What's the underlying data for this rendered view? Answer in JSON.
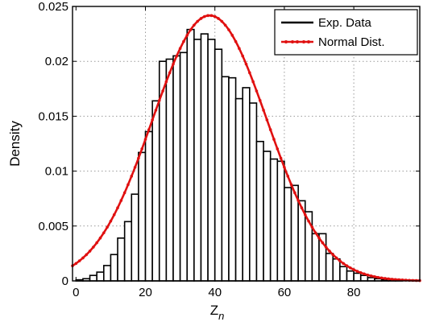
{
  "chart_data": {
    "type": "bar",
    "title": "",
    "xlabel": "Z",
    "xlabel_subscript": "n",
    "ylabel": "Density",
    "xlim": [
      -1,
      99
    ],
    "ylim": [
      0,
      0.025
    ],
    "grid": true,
    "legend_position": "top-right",
    "x_ticks": [
      0,
      20,
      40,
      60,
      80
    ],
    "x_tick_labels": [
      "0",
      "20",
      "40",
      "60",
      "80"
    ],
    "y_ticks": [
      0,
      0.005,
      0.01,
      0.015,
      0.02,
      0.025
    ],
    "y_tick_labels": [
      "0",
      "0.005",
      "0.01",
      "0.015",
      "0.02",
      "0.025"
    ],
    "bin_width": 2,
    "series": [
      {
        "name": "Exp. Data",
        "kind": "histogram",
        "color": "#000000",
        "bin_starts": [
          0,
          2,
          4,
          6,
          8,
          10,
          12,
          14,
          16,
          18,
          20,
          22,
          24,
          26,
          28,
          30,
          32,
          34,
          36,
          38,
          40,
          42,
          44,
          46,
          48,
          50,
          52,
          54,
          56,
          58,
          60,
          62,
          64,
          66,
          68,
          70,
          72,
          74,
          76,
          78,
          80,
          82,
          84,
          86,
          88,
          90,
          92,
          94,
          96
        ],
        "values": [
          0.0001,
          0.0002,
          0.0005,
          0.0008,
          0.0014,
          0.0024,
          0.0039,
          0.0054,
          0.0079,
          0.0117,
          0.0136,
          0.0164,
          0.02,
          0.0202,
          0.0205,
          0.0208,
          0.0229,
          0.022,
          0.0225,
          0.022,
          0.0211,
          0.0186,
          0.0185,
          0.0166,
          0.0176,
          0.0162,
          0.0127,
          0.0118,
          0.0111,
          0.0109,
          0.0085,
          0.0087,
          0.0073,
          0.0063,
          0.0043,
          0.0043,
          0.0025,
          0.002,
          0.0013,
          0.0009,
          0.0007,
          0.0005,
          0.0003,
          0.0002,
          0.0001,
          0.0001,
          0.0001,
          0.0,
          0.0
        ]
      },
      {
        "name": "Normal Dist.",
        "kind": "curve",
        "color": "#e01010",
        "mean": 38.5,
        "std": 16.5
      }
    ]
  }
}
